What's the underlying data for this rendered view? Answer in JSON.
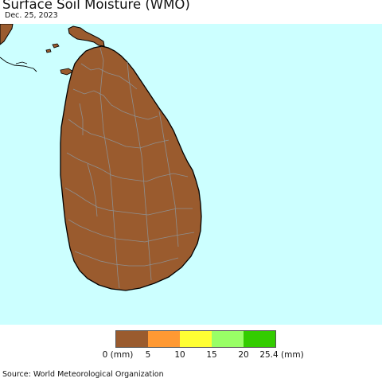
{
  "header": {
    "title": "Surface Soil Moisture (WMO)",
    "date": "Dec. 25, 2023"
  },
  "map": {
    "region": "Sri Lanka",
    "ocean_color": "#ccffff",
    "land_color": "#9a5b2e",
    "boundary_color": "#8f8f8f",
    "coast_color": "#000000",
    "category_shown": "0 - 5 mm"
  },
  "legend": {
    "unit_label_left": "0 (mm)",
    "ticks": [
      "5",
      "10",
      "15",
      "20"
    ],
    "unit_label_right": "25.4 (mm)",
    "colors": [
      "#9a5b2e",
      "#ff9933",
      "#ffff33",
      "#99ff66",
      "#33cc00"
    ]
  },
  "footer": {
    "source": "Source: World Meteorological Organization"
  }
}
